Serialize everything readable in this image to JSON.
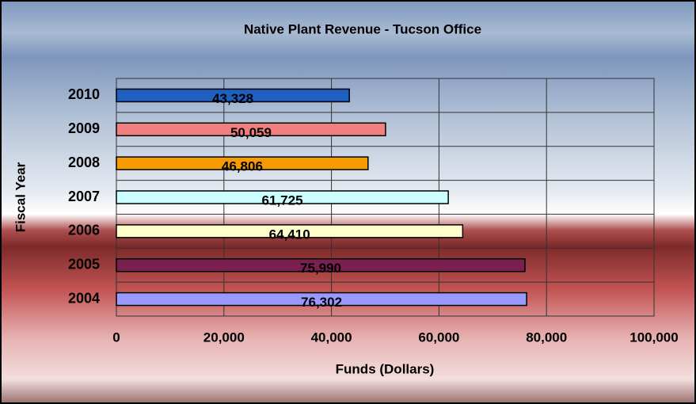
{
  "chart_data": {
    "type": "bar",
    "orientation": "horizontal",
    "title": "Native Plant Revenue - Tucson Office",
    "x_label": "Funds (Dollars)",
    "y_label": "Fiscal Year",
    "categories": [
      "2010",
      "2009",
      "2008",
      "2007",
      "2006",
      "2005",
      "2004"
    ],
    "values": [
      43328,
      50059,
      46806,
      61725,
      64410,
      75990,
      76302
    ],
    "value_labels": [
      "43,328",
      "50,059",
      "46,806",
      "61,725",
      "64,410",
      "75,990",
      "76,302"
    ],
    "colors": [
      "#1f5fc0",
      "#f08080",
      "#f59a00",
      "#ccffff",
      "#ffffcc",
      "#7a2050",
      "#9999ff"
    ],
    "xlim": [
      0,
      100000
    ],
    "xticks": [
      0,
      {
        "value": 20000,
        "label": "20,000"
      },
      {
        "value": 40000,
        "label": "40,000"
      },
      {
        "value": 60000,
        "label": "60,000"
      },
      {
        "value": 80000,
        "label": "80,000"
      },
      {
        "value": 100000,
        "label": "100,000"
      }
    ],
    "grid": true
  }
}
